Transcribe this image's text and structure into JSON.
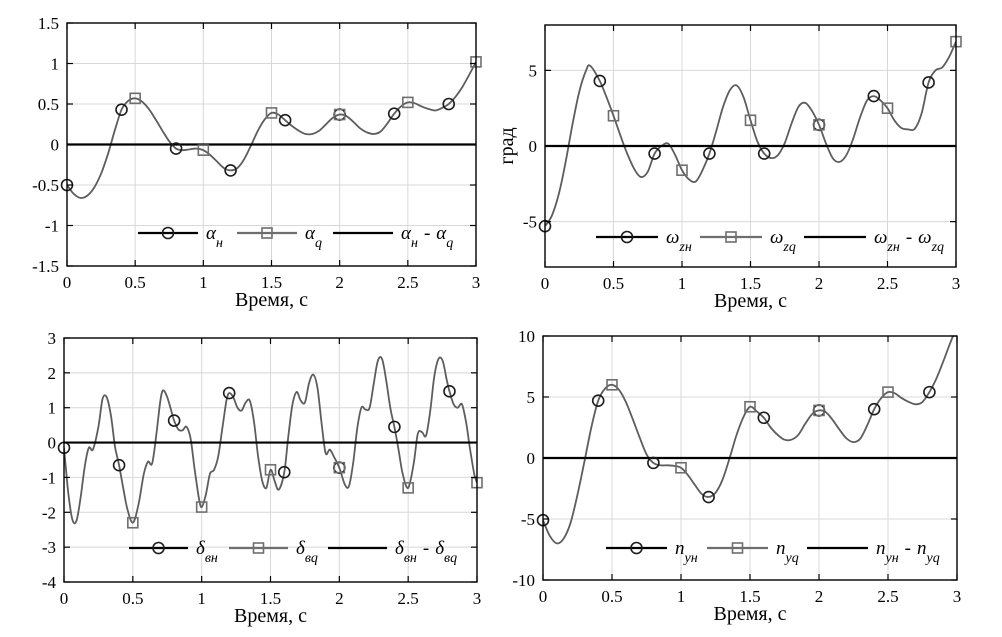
{
  "figure": {
    "background": "#ffffff",
    "colors": {
      "curve": "#5d5d5d",
      "circle_marker": "#1c1c1c",
      "square_marker": "#6e6e6e",
      "difference_line": "#000000",
      "grid": "#d8d8d8",
      "axis": "#000000",
      "text": "#000000"
    }
  },
  "chart_data": [
    {
      "id": "alpha",
      "type": "line",
      "position": "top-left",
      "xlabel": "Время, с",
      "ylabel": "",
      "xlim": [
        0,
        3
      ],
      "ylim": [
        -1.5,
        1.5
      ],
      "xticks": [
        0,
        0.5,
        1,
        1.5,
        2,
        2.5,
        3
      ],
      "xtick_labels": [
        "0",
        "0.5",
        "1",
        "1.5",
        "2",
        "2.5",
        "3"
      ],
      "yticks": [
        -1.5,
        -1,
        -0.5,
        0,
        0.5,
        1,
        1.5
      ],
      "ytick_labels": [
        "-1.5",
        "-1",
        "-0.5",
        "0",
        "0.5",
        "1",
        "1.5"
      ],
      "grid": true,
      "legend_position": "inside-bottom",
      "legend": [
        {
          "marker": "circle",
          "label_parts": [
            {
              "t": "α",
              "sub": "н"
            }
          ]
        },
        {
          "marker": "square",
          "label_parts": [
            {
              "t": "α",
              "sub": "q"
            }
          ]
        },
        {
          "marker": "line",
          "label_parts": [
            {
              "t": "α",
              "sub": "н"
            },
            {
              "t": "-"
            },
            {
              "t": "α",
              "sub": "q"
            }
          ]
        }
      ],
      "series": [
        {
          "name": "curve",
          "x": [
            0,
            0.05,
            0.1,
            0.15,
            0.2,
            0.25,
            0.3,
            0.35,
            0.4,
            0.45,
            0.5,
            0.55,
            0.6,
            0.65,
            0.7,
            0.75,
            0.8,
            0.85,
            0.9,
            0.95,
            1,
            1.05,
            1.1,
            1.15,
            1.2,
            1.25,
            1.3,
            1.35,
            1.4,
            1.45,
            1.5,
            1.55,
            1.6,
            1.65,
            1.7,
            1.75,
            1.8,
            1.85,
            1.9,
            1.95,
            2,
            2.05,
            2.1,
            2.15,
            2.2,
            2.25,
            2.3,
            2.35,
            2.4,
            2.45,
            2.5,
            2.55,
            2.6,
            2.65,
            2.7,
            2.75,
            2.8,
            2.85,
            2.9,
            2.95,
            3
          ],
          "y": [
            -0.5,
            -0.61,
            -0.66,
            -0.63,
            -0.53,
            -0.36,
            -0.12,
            0.17,
            0.43,
            0.54,
            0.57,
            0.53,
            0.44,
            0.31,
            0.17,
            0.04,
            -0.05,
            -0.07,
            -0.06,
            -0.05,
            -0.07,
            -0.13,
            -0.21,
            -0.29,
            -0.32,
            -0.29,
            -0.18,
            -0.01,
            0.17,
            0.31,
            0.39,
            0.37,
            0.3,
            0.23,
            0.17,
            0.13,
            0.13,
            0.17,
            0.25,
            0.33,
            0.37,
            0.35,
            0.28,
            0.2,
            0.15,
            0.13,
            0.16,
            0.26,
            0.38,
            0.47,
            0.52,
            0.51,
            0.47,
            0.44,
            0.42,
            0.45,
            0.5,
            0.59,
            0.71,
            0.86,
            1.02
          ]
        },
        {
          "name": "circle_markers",
          "x": [
            0,
            0.4,
            0.8,
            1.2,
            1.6,
            2,
            2.4,
            2.8
          ],
          "y": [
            -0.5,
            0.43,
            -0.05,
            -0.32,
            0.3,
            0.37,
            0.38,
            0.5
          ]
        },
        {
          "name": "square_markers",
          "x": [
            0.5,
            1,
            1.5,
            2,
            2.5,
            3
          ],
          "y": [
            0.57,
            -0.07,
            0.39,
            0.37,
            0.52,
            1.02
          ]
        },
        {
          "name": "difference",
          "constant": 0
        }
      ]
    },
    {
      "id": "omega-z",
      "type": "line",
      "position": "top-right",
      "xlabel": "Время, с",
      "ylabel": "град",
      "xlim": [
        0,
        3
      ],
      "ylim": [
        -8,
        8
      ],
      "xticks": [
        0,
        0.5,
        1,
        1.5,
        2,
        2.5,
        3
      ],
      "xtick_labels": [
        "0",
        "0.5",
        "1",
        "1.5",
        "2",
        "2.5",
        "3"
      ],
      "yticks": [
        -5,
        0,
        5
      ],
      "ytick_labels": [
        "-5",
        "0",
        "5"
      ],
      "grid": true,
      "legend_position": "inside-bottom",
      "legend": [
        {
          "marker": "circle",
          "label_parts": [
            {
              "t": "ω",
              "sub": "zн"
            }
          ]
        },
        {
          "marker": "square",
          "label_parts": [
            {
              "t": "ω",
              "sub": "zq"
            }
          ]
        },
        {
          "marker": "line",
          "label_parts": [
            {
              "t": "ω",
              "sub": "zн"
            },
            {
              "t": "-"
            },
            {
              "t": "ω",
              "sub": "zq"
            }
          ]
        }
      ],
      "series": [
        {
          "name": "curve",
          "x": [
            0,
            0.05,
            0.1,
            0.15,
            0.2,
            0.25,
            0.3,
            0.33,
            0.4,
            0.45,
            0.5,
            0.55,
            0.6,
            0.65,
            0.7,
            0.75,
            0.8,
            0.85,
            0.9,
            0.95,
            1,
            1.05,
            1.1,
            1.15,
            1.2,
            1.25,
            1.3,
            1.35,
            1.4,
            1.45,
            1.5,
            1.55,
            1.6,
            1.65,
            1.7,
            1.75,
            1.8,
            1.85,
            1.9,
            1.95,
            2,
            2.05,
            2.1,
            2.15,
            2.2,
            2.25,
            2.3,
            2.35,
            2.4,
            2.45,
            2.5,
            2.55,
            2.6,
            2.65,
            2.7,
            2.75,
            2.8,
            2.85,
            2.9,
            2.95,
            3
          ],
          "y": [
            -5.3,
            -4.6,
            -3.2,
            -1.1,
            1.4,
            3.6,
            5,
            5.3,
            4.3,
            3.2,
            2,
            0.7,
            -0.5,
            -1.5,
            -2.05,
            -1.7,
            -0.5,
            0,
            0.15,
            -0.6,
            -1.6,
            -2.2,
            -2.35,
            -1.6,
            -0.5,
            1,
            2.6,
            3.7,
            4,
            3.2,
            1.7,
            0.3,
            -0.5,
            -0.8,
            -0.6,
            0.2,
            1.5,
            2.6,
            2.85,
            2.3,
            1.4,
            0.2,
            -0.8,
            -1.05,
            -0.6,
            0.5,
            1.9,
            3,
            3.3,
            3,
            2.5,
            1.7,
            1.2,
            1.1,
            1.15,
            2.2,
            4.2,
            5,
            5.2,
            5.9,
            6.9
          ]
        },
        {
          "name": "circle_markers",
          "x": [
            0,
            0.4,
            0.8,
            1.2,
            1.6,
            2,
            2.4,
            2.8
          ],
          "y": [
            -5.3,
            4.3,
            -0.5,
            -0.5,
            -0.5,
            1.4,
            3.3,
            4.2
          ]
        },
        {
          "name": "square_markers",
          "x": [
            0.5,
            1,
            1.5,
            2,
            2.5,
            3
          ],
          "y": [
            2,
            -1.6,
            1.7,
            1.4,
            2.5,
            6.9
          ]
        },
        {
          "name": "difference",
          "constant": 0
        }
      ]
    },
    {
      "id": "delta-v",
      "type": "line",
      "position": "bottom-left",
      "xlabel": "Время, с",
      "ylabel": "",
      "xlim": [
        0,
        3
      ],
      "ylim": [
        -4,
        3
      ],
      "xticks": [
        0,
        0.5,
        1,
        1.5,
        2,
        2.5,
        3
      ],
      "xtick_labels": [
        "0",
        "0.5",
        "1",
        "1.5",
        "2",
        "2.5",
        "3"
      ],
      "yticks": [
        -4,
        -3,
        -2,
        -1,
        0,
        1,
        2,
        3
      ],
      "ytick_labels": [
        "-4",
        "-3",
        "-2",
        "-1",
        "0",
        "1",
        "2",
        "3"
      ],
      "grid": true,
      "legend_position": "inside-bottom",
      "legend": [
        {
          "marker": "circle",
          "label_parts": [
            {
              "t": "δ",
              "sub": "вн"
            }
          ]
        },
        {
          "marker": "square",
          "label_parts": [
            {
              "t": "δ",
              "sub": "вq"
            }
          ]
        },
        {
          "marker": "line",
          "label_parts": [
            {
              "t": "δ",
              "sub": "вн"
            },
            {
              "t": "-"
            },
            {
              "t": "δ",
              "sub": "вq"
            }
          ]
        }
      ],
      "series": [
        {
          "name": "curve",
          "x": [
            0,
            0.03,
            0.06,
            0.09,
            0.12,
            0.15,
            0.18,
            0.21,
            0.25,
            0.28,
            0.31,
            0.34,
            0.37,
            0.4,
            0.43,
            0.46,
            0.5,
            0.54,
            0.58,
            0.61,
            0.64,
            0.67,
            0.7,
            0.72,
            0.75,
            0.78,
            0.8,
            0.83,
            0.86,
            0.89,
            0.92,
            0.95,
            0.98,
            1,
            1.03,
            1.06,
            1.09,
            1.12,
            1.15,
            1.18,
            1.2,
            1.23,
            1.26,
            1.29,
            1.32,
            1.35,
            1.38,
            1.41,
            1.44,
            1.47,
            1.5,
            1.53,
            1.56,
            1.6,
            1.63,
            1.66,
            1.69,
            1.72,
            1.75,
            1.78,
            1.81,
            1.84,
            1.87,
            1.9,
            1.93,
            1.96,
            2,
            2.04,
            2.07,
            2.1,
            2.13,
            2.16,
            2.19,
            2.22,
            2.25,
            2.28,
            2.31,
            2.34,
            2.37,
            2.4,
            2.43,
            2.46,
            2.5,
            2.54,
            2.57,
            2.6,
            2.63,
            2.66,
            2.69,
            2.72,
            2.75,
            2.78,
            2.8,
            2.83,
            2.86,
            2.89,
            2.92,
            2.95,
            2.98,
            3
          ],
          "y": [
            -0.15,
            -1.4,
            -2.2,
            -2.25,
            -1.6,
            -0.7,
            -0.15,
            -0.2,
            0.45,
            1.25,
            1.3,
            0.8,
            -0.1,
            -0.65,
            -1.3,
            -1.9,
            -2.3,
            -1.8,
            -0.9,
            -0.55,
            -0.6,
            0.2,
            1.2,
            1.5,
            1.3,
            0.9,
            0.63,
            0.38,
            0.35,
            0.45,
            0.1,
            -0.8,
            -1.6,
            -1.85,
            -1.5,
            -0.9,
            -0.78,
            -0.4,
            0.4,
            1.2,
            1.42,
            1.3,
            1,
            0.92,
            1.15,
            1.2,
            0.6,
            -0.4,
            -1.1,
            -1.3,
            -0.78,
            -1.1,
            -1.35,
            -0.85,
            0.2,
            1.1,
            1.45,
            1.2,
            1.15,
            1.7,
            1.95,
            1.6,
            0.6,
            -0.3,
            -0.2,
            -0.4,
            -0.72,
            -1.2,
            -1.25,
            -0.6,
            0.4,
            1,
            0.95,
            1,
            1.7,
            2.35,
            2.4,
            1.8,
            1,
            0.45,
            -0.2,
            -0.9,
            -1.3,
            -0.6,
            0.25,
            0.3,
            0.2,
            0.9,
            1.9,
            2.4,
            2.35,
            1.8,
            1.47,
            1.1,
            1,
            1.1,
            0.6,
            -0.2,
            -0.9,
            -1.15
          ]
        },
        {
          "name": "circle_markers",
          "x": [
            0,
            0.4,
            0.8,
            1.2,
            1.6,
            2,
            2.4,
            2.8
          ],
          "y": [
            -0.15,
            -0.65,
            0.63,
            1.42,
            -0.85,
            -0.72,
            0.45,
            1.47
          ]
        },
        {
          "name": "square_markers",
          "x": [
            0.5,
            1,
            1.5,
            2,
            2.5,
            3
          ],
          "y": [
            -2.3,
            -1.85,
            -0.78,
            -0.72,
            -1.3,
            -1.15
          ]
        },
        {
          "name": "difference",
          "constant": 0
        }
      ]
    },
    {
      "id": "n-y",
      "type": "line",
      "position": "bottom-right",
      "xlabel": "Время, с",
      "ylabel": "",
      "xlim": [
        0,
        3
      ],
      "ylim": [
        -10,
        10
      ],
      "xticks": [
        0,
        0.5,
        1,
        1.5,
        2,
        2.5,
        3
      ],
      "xtick_labels": [
        "0",
        "0.5",
        "1",
        "1.5",
        "2",
        "2.5",
        "3"
      ],
      "yticks": [
        -10,
        -5,
        0,
        5,
        10
      ],
      "ytick_labels": [
        "-10",
        "-5",
        "0",
        "5",
        "10"
      ],
      "grid": true,
      "legend_position": "inside-bottom",
      "legend": [
        {
          "marker": "circle",
          "label_parts": [
            {
              "t": "n",
              "sub": "ун"
            }
          ]
        },
        {
          "marker": "square",
          "label_parts": [
            {
              "t": "n",
              "sub": "уq"
            }
          ]
        },
        {
          "marker": "line",
          "label_parts": [
            {
              "t": "n",
              "sub": "ун"
            },
            {
              "t": "-"
            },
            {
              "t": "n",
              "sub": "уq"
            }
          ]
        }
      ],
      "series": [
        {
          "name": "curve",
          "x": [
            0,
            0.05,
            0.1,
            0.15,
            0.2,
            0.25,
            0.3,
            0.35,
            0.4,
            0.45,
            0.5,
            0.55,
            0.6,
            0.65,
            0.7,
            0.75,
            0.8,
            0.85,
            0.9,
            0.95,
            1,
            1.05,
            1.1,
            1.15,
            1.2,
            1.25,
            1.3,
            1.35,
            1.4,
            1.45,
            1.5,
            1.55,
            1.6,
            1.65,
            1.7,
            1.75,
            1.8,
            1.85,
            1.9,
            1.95,
            2,
            2.05,
            2.1,
            2.15,
            2.2,
            2.25,
            2.3,
            2.35,
            2.4,
            2.45,
            2.5,
            2.55,
            2.6,
            2.65,
            2.7,
            2.75,
            2.8,
            2.85,
            2.9,
            2.95,
            3
          ],
          "y": [
            -5.1,
            -6.4,
            -7,
            -6.6,
            -5.3,
            -3,
            -0.3,
            2.5,
            4.7,
            5.7,
            6,
            5.6,
            4.6,
            3.2,
            1.7,
            0.3,
            -0.4,
            -0.6,
            -0.6,
            -0.65,
            -0.8,
            -1.4,
            -2.2,
            -2.95,
            -3.2,
            -2.85,
            -1.8,
            -0.1,
            1.8,
            3.3,
            4.2,
            3.8,
            3.3,
            2.5,
            1.9,
            1.5,
            1.5,
            1.9,
            2.8,
            3.6,
            3.9,
            3.75,
            3.1,
            2.3,
            1.6,
            1.3,
            1.6,
            2.7,
            4,
            4.9,
            5.4,
            5.3,
            4.9,
            4.6,
            4.4,
            4.6,
            5.4,
            6.5,
            7.9,
            9.4,
            10.8
          ]
        },
        {
          "name": "circle_markers",
          "x": [
            0,
            0.4,
            0.8,
            1.2,
            1.6,
            2,
            2.4,
            2.8
          ],
          "y": [
            -5.1,
            4.7,
            -0.4,
            -3.2,
            3.3,
            3.9,
            4,
            5.4
          ]
        },
        {
          "name": "square_markers",
          "x": [
            0.5,
            1,
            1.5,
            2,
            2.5
          ],
          "y": [
            6,
            -0.8,
            4.2,
            3.9,
            5.4
          ]
        },
        {
          "name": "difference",
          "constant": 0
        }
      ]
    }
  ]
}
